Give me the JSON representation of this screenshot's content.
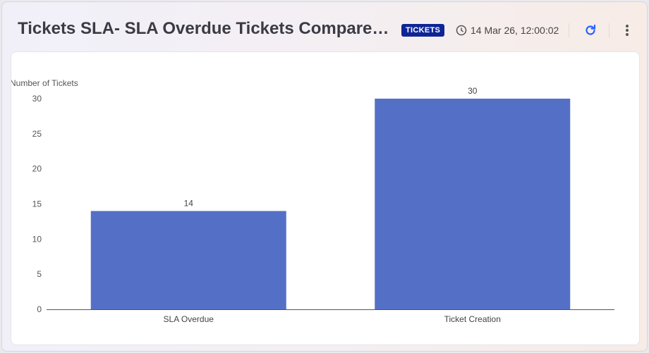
{
  "header": {
    "title": "Tickets SLA- SLA Overdue Tickets Compared to Ticket Creation",
    "badge": "TICKETS",
    "timestamp": "14 Mar 26, 12:00:02"
  },
  "colors": {
    "bar": "#5470c6",
    "badge": "#0f2595",
    "refresh": "#2962ff"
  },
  "chart_data": {
    "type": "bar",
    "title": "",
    "xlabel": "",
    "ylabel": "Number of Tickets",
    "categories": [
      "SLA Overdue",
      "Ticket Creation"
    ],
    "values": [
      14,
      30
    ],
    "ylim": [
      0,
      30
    ],
    "yticks": [
      0,
      5,
      10,
      15,
      20,
      25,
      30
    ],
    "grid": false
  }
}
